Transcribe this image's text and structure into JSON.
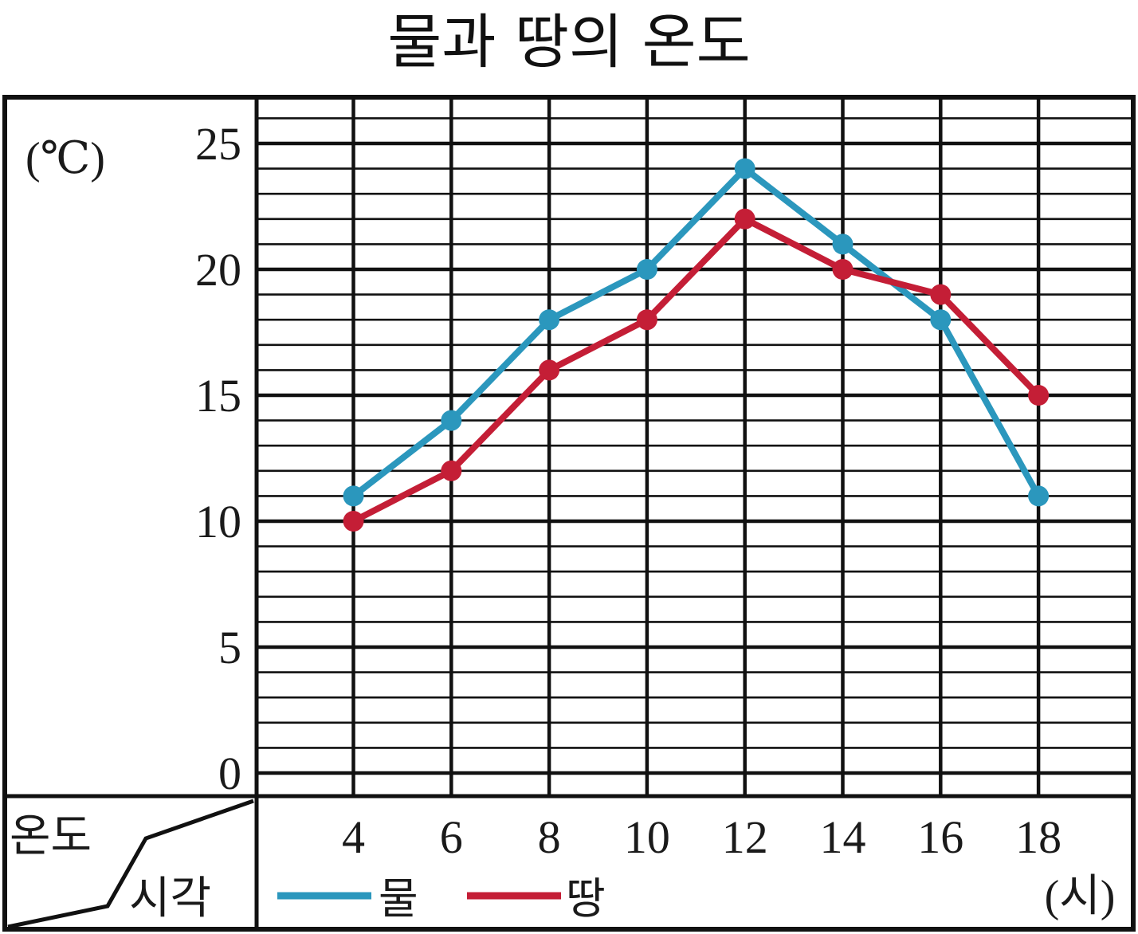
{
  "chart_data": {
    "type": "line",
    "title": "물과 땅의 온도",
    "ylabel": "(℃)",
    "xlabel": "(시)",
    "corner_header": {
      "row_label": "온도",
      "col_label": "시각"
    },
    "x": [
      4,
      6,
      8,
      10,
      12,
      14,
      16,
      18
    ],
    "xlim": [
      2,
      20
    ],
    "ylim": [
      0,
      27.5
    ],
    "y_ticks": [
      0,
      5,
      10,
      15,
      20,
      25
    ],
    "y_minor_step": 1,
    "grid": true,
    "legend_position": "bottom-left",
    "series": [
      {
        "name": "물",
        "color": "#2b97bd",
        "values": [
          11,
          14,
          18,
          20,
          24,
          21,
          18,
          11
        ]
      },
      {
        "name": "땅",
        "color": "#c41e36",
        "values": [
          10,
          12,
          16,
          18,
          22,
          20,
          19,
          15
        ]
      }
    ]
  }
}
